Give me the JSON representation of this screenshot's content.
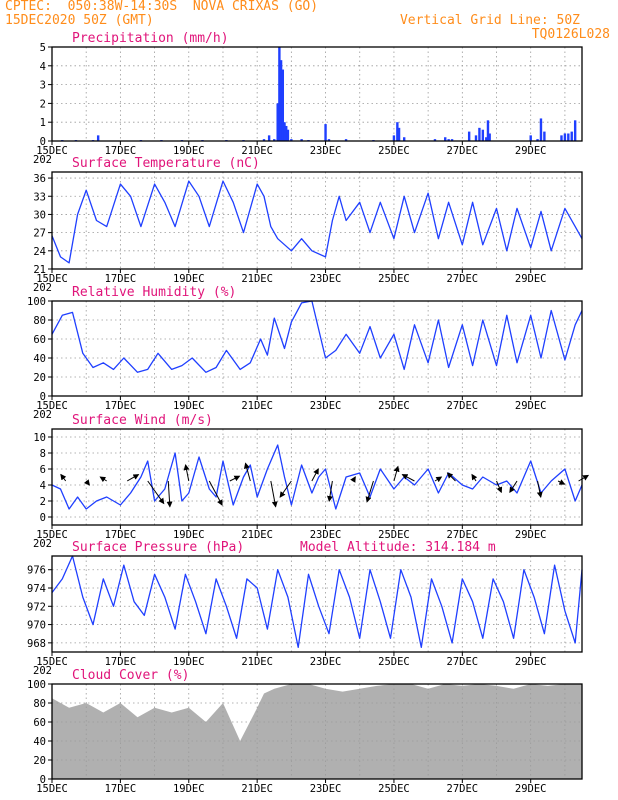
{
  "header": {
    "line1_left": "CPTEC:  050:38W-14:30S  NOVA CRIXAS (GO)",
    "line2_left": "15DEC2020 50Z (GMT)",
    "line2_right": "Vertical Grid Line: 50Z",
    "line3_right": "TQ0126L028"
  },
  "colors": {
    "header": "#ff8c1a",
    "title": "#e0147a",
    "series": "#1f3fff",
    "cloud": "#b0b0b0",
    "grid": "#9a9a9a"
  },
  "x_axis": {
    "start": "15DEC2020",
    "days": 15.5,
    "tick_labels": [
      "15DEC",
      "17DEC",
      "19DEC",
      "21DEC",
      "23DEC",
      "25DEC",
      "27DEC",
      "29DEC"
    ],
    "year_fragment": "202"
  },
  "chart_data": [
    {
      "id": "precip",
      "type": "bar",
      "title": "Precipitation (mm/h)",
      "ylim": [
        0,
        5
      ],
      "yticks": [
        0,
        1,
        2,
        3,
        4,
        5
      ],
      "x_unit": "days since 15DEC2020 00Z",
      "x": [
        0.3,
        0.7,
        1.2,
        1.35,
        2.6,
        3.2,
        3.8,
        4.4,
        5.1,
        5.6,
        6.2,
        6.35,
        6.5,
        6.6,
        6.65,
        6.7,
        6.75,
        6.8,
        6.85,
        6.9,
        7.0,
        7.3,
        7.5,
        8.0,
        8.1,
        8.6,
        9.4,
        10.0,
        10.1,
        10.15,
        10.3,
        11.2,
        11.5,
        11.6,
        11.7,
        12.2,
        12.4,
        12.5,
        12.6,
        12.7,
        12.75,
        12.8,
        14.0,
        14.2,
        14.3,
        14.4,
        14.9,
        15.0,
        15.1,
        15.2,
        15.3
      ],
      "values": [
        0.05,
        0.05,
        0.05,
        0.3,
        0.05,
        0.05,
        0.05,
        0.05,
        0.05,
        0.05,
        0.1,
        0.3,
        0.1,
        2.0,
        5.0,
        4.3,
        3.8,
        1.0,
        0.8,
        0.6,
        0.1,
        0.1,
        0.05,
        0.9,
        0.1,
        0.1,
        0.05,
        0.3,
        1.0,
        0.7,
        0.2,
        0.1,
        0.2,
        0.1,
        0.1,
        0.5,
        0.3,
        0.7,
        0.6,
        0.2,
        1.1,
        0.4,
        0.3,
        0.1,
        1.2,
        0.5,
        0.3,
        0.4,
        0.4,
        0.5,
        1.1
      ]
    },
    {
      "id": "temp",
      "type": "line",
      "title": "Surface Temperature (nC)",
      "ylim": [
        21,
        37
      ],
      "yticks": [
        21,
        24,
        27,
        30,
        33,
        36
      ],
      "x_unit": "days since 15DEC2020 00Z",
      "x": [
        0.0,
        0.25,
        0.5,
        0.75,
        1.0,
        1.3,
        1.6,
        2.0,
        2.3,
        2.6,
        3.0,
        3.3,
        3.6,
        4.0,
        4.3,
        4.6,
        5.0,
        5.3,
        5.6,
        6.0,
        6.2,
        6.4,
        6.6,
        7.0,
        7.3,
        7.6,
        8.0,
        8.2,
        8.4,
        8.6,
        9.0,
        9.3,
        9.6,
        10.0,
        10.3,
        10.6,
        11.0,
        11.3,
        11.6,
        12.0,
        12.3,
        12.6,
        13.0,
        13.3,
        13.6,
        14.0,
        14.3,
        14.6,
        15.0,
        15.3,
        15.5
      ],
      "values": [
        26.5,
        23.0,
        22.0,
        30.0,
        34.0,
        29.0,
        28.0,
        35.0,
        33.0,
        28.0,
        35.0,
        32.0,
        28.0,
        35.5,
        33.0,
        28.0,
        35.5,
        32.0,
        27.0,
        35.0,
        33.0,
        28.0,
        26.0,
        24.0,
        26.0,
        24.0,
        23.0,
        29.0,
        33.0,
        29.0,
        32.0,
        27.0,
        32.0,
        26.0,
        33.0,
        27.0,
        33.5,
        26.0,
        32.0,
        25.0,
        32.0,
        25.0,
        31.0,
        24.0,
        31.0,
        24.5,
        30.5,
        24.0,
        31.0,
        28.0,
        26.0
      ]
    },
    {
      "id": "rh",
      "type": "line",
      "title": "Relative Humidity (%)",
      "ylim": [
        0,
        100
      ],
      "yticks": [
        0,
        20,
        40,
        60,
        80,
        100
      ],
      "x_unit": "days since 15DEC2020 00Z",
      "x": [
        0.0,
        0.3,
        0.6,
        0.9,
        1.2,
        1.5,
        1.8,
        2.1,
        2.5,
        2.8,
        3.1,
        3.5,
        3.8,
        4.1,
        4.5,
        4.8,
        5.1,
        5.5,
        5.8,
        6.1,
        6.3,
        6.5,
        6.8,
        7.0,
        7.3,
        7.6,
        8.0,
        8.3,
        8.6,
        9.0,
        9.3,
        9.6,
        10.0,
        10.3,
        10.6,
        11.0,
        11.3,
        11.6,
        12.0,
        12.3,
        12.6,
        13.0,
        13.3,
        13.6,
        14.0,
        14.3,
        14.6,
        15.0,
        15.3,
        15.5
      ],
      "values": [
        65,
        85,
        88,
        45,
        30,
        35,
        28,
        40,
        25,
        28,
        45,
        28,
        32,
        40,
        25,
        30,
        48,
        28,
        35,
        60,
        43,
        82,
        50,
        78,
        98,
        100,
        40,
        48,
        65,
        45,
        73,
        40,
        65,
        28,
        75,
        35,
        80,
        30,
        75,
        32,
        80,
        32,
        85,
        35,
        85,
        40,
        90,
        38,
        75,
        90
      ]
    },
    {
      "id": "wind",
      "type": "line",
      "title": "Surface Wind (m/s)",
      "ylim": [
        -1,
        11
      ],
      "yticks": [
        0,
        2,
        4,
        6,
        8,
        10
      ],
      "x_unit": "days since 15DEC2020 00Z",
      "x": [
        0.0,
        0.25,
        0.5,
        0.75,
        1.0,
        1.3,
        1.6,
        2.0,
        2.3,
        2.6,
        2.8,
        3.0,
        3.3,
        3.6,
        3.8,
        4.0,
        4.3,
        4.6,
        4.8,
        5.0,
        5.3,
        5.6,
        5.8,
        6.0,
        6.3,
        6.6,
        6.8,
        7.0,
        7.3,
        7.6,
        7.8,
        8.0,
        8.3,
        8.6,
        9.0,
        9.3,
        9.6,
        10.0,
        10.3,
        10.6,
        11.0,
        11.3,
        11.6,
        12.0,
        12.3,
        12.6,
        13.0,
        13.3,
        13.6,
        14.0,
        14.3,
        14.6,
        15.0,
        15.3,
        15.5
      ],
      "values": [
        4.0,
        3.5,
        1.0,
        2.5,
        1.0,
        2.0,
        2.5,
        1.5,
        3.0,
        5.0,
        7.0,
        2.0,
        3.5,
        8.0,
        2.0,
        3.0,
        7.5,
        3.5,
        2.5,
        7.0,
        1.5,
        5.0,
        6.5,
        2.5,
        6.0,
        9.0,
        5.0,
        1.5,
        6.5,
        3.0,
        5.0,
        6.0,
        1.0,
        5.0,
        5.5,
        2.5,
        6.0,
        3.5,
        5.0,
        4.0,
        6.0,
        3.0,
        5.5,
        4.0,
        3.5,
        5.0,
        4.0,
        4.5,
        3.0,
        7.0,
        3.0,
        4.5,
        6.0,
        2.0,
        4.0
      ]
    },
    {
      "id": "pressure",
      "type": "line",
      "title": "Surface Pressure (hPa)",
      "annotation": "Model Altitude: 314.184 m",
      "ylim": [
        967,
        977.5
      ],
      "yticks": [
        968,
        970,
        972,
        974,
        976
      ],
      "x_unit": "days since 15DEC2020 00Z",
      "x": [
        0.0,
        0.3,
        0.6,
        0.9,
        1.2,
        1.5,
        1.8,
        2.1,
        2.4,
        2.7,
        3.0,
        3.3,
        3.6,
        3.9,
        4.2,
        4.5,
        4.8,
        5.1,
        5.4,
        5.7,
        6.0,
        6.3,
        6.6,
        6.9,
        7.2,
        7.5,
        7.8,
        8.1,
        8.4,
        8.7,
        9.0,
        9.3,
        9.6,
        9.9,
        10.2,
        10.5,
        10.8,
        11.1,
        11.4,
        11.7,
        12.0,
        12.3,
        12.6,
        12.9,
        13.2,
        13.5,
        13.8,
        14.1,
        14.4,
        14.7,
        15.0,
        15.3,
        15.5
      ],
      "values": [
        973.5,
        975.0,
        977.5,
        973.0,
        970.0,
        975.0,
        972.0,
        976.5,
        972.5,
        971.0,
        975.5,
        973.0,
        969.5,
        975.5,
        972.5,
        969.0,
        975.0,
        972.0,
        968.5,
        975.0,
        974.0,
        969.5,
        976.0,
        973.0,
        967.5,
        975.5,
        972.0,
        969.0,
        976.0,
        973.0,
        968.5,
        976.0,
        972.5,
        968.5,
        976.0,
        973.0,
        967.5,
        975.0,
        972.0,
        968.0,
        975.0,
        972.5,
        968.5,
        975.0,
        972.5,
        968.5,
        976.0,
        973.0,
        969.0,
        976.5,
        971.5,
        968.0,
        976.0
      ]
    },
    {
      "id": "cloud",
      "type": "area",
      "title": "Cloud Cover (%)",
      "ylim": [
        0,
        100
      ],
      "yticks": [
        0,
        20,
        40,
        60,
        80,
        100
      ],
      "x_unit": "days since 15DEC2020 00Z",
      "x": [
        0.0,
        0.5,
        1.0,
        1.5,
        2.0,
        2.5,
        3.0,
        3.5,
        4.0,
        4.5,
        5.0,
        5.5,
        6.0,
        6.2,
        6.5,
        7.0,
        7.5,
        8.0,
        8.5,
        9.0,
        9.5,
        10.0,
        10.5,
        11.0,
        11.5,
        12.0,
        12.5,
        13.0,
        13.5,
        14.0,
        14.5,
        15.0,
        15.5
      ],
      "values": [
        85,
        75,
        80,
        70,
        80,
        65,
        75,
        70,
        75,
        60,
        80,
        40,
        75,
        90,
        95,
        100,
        100,
        95,
        92,
        95,
        98,
        100,
        100,
        95,
        100,
        98,
        100,
        98,
        95,
        100,
        98,
        100,
        100
      ]
    }
  ],
  "wind_vectors": {
    "x": [
      0.4,
      1.0,
      1.6,
      2.2,
      2.8,
      3.4,
      4.0,
      4.6,
      5.2,
      5.8,
      6.4,
      7.0,
      7.6,
      8.2,
      8.8,
      9.4,
      10.0,
      10.6,
      11.2,
      11.8,
      12.4,
      13.0,
      13.6,
      14.2,
      14.8,
      15.4
    ],
    "u": [
      -0.6,
      0.4,
      -0.8,
      1.4,
      2.0,
      0.2,
      -0.4,
      1.6,
      1.2,
      -0.6,
      0.6,
      -1.4,
      0.8,
      -0.4,
      0.3,
      -0.8,
      0.5,
      -1.5,
      0.8,
      -1.0,
      -0.5,
      0.6,
      -0.9,
      0.4,
      0.8,
      1.2
    ],
    "v": [
      0.8,
      -0.5,
      0.5,
      0.8,
      -2.8,
      -3.2,
      2.0,
      -3.0,
      0.6,
      2.2,
      -3.2,
      -2.0,
      1.5,
      -2.5,
      0.5,
      -2.6,
      1.8,
      0.8,
      0.5,
      1.0,
      0.8,
      -1.4,
      -1.4,
      -2.0,
      -0.4,
      0.7
    ]
  }
}
